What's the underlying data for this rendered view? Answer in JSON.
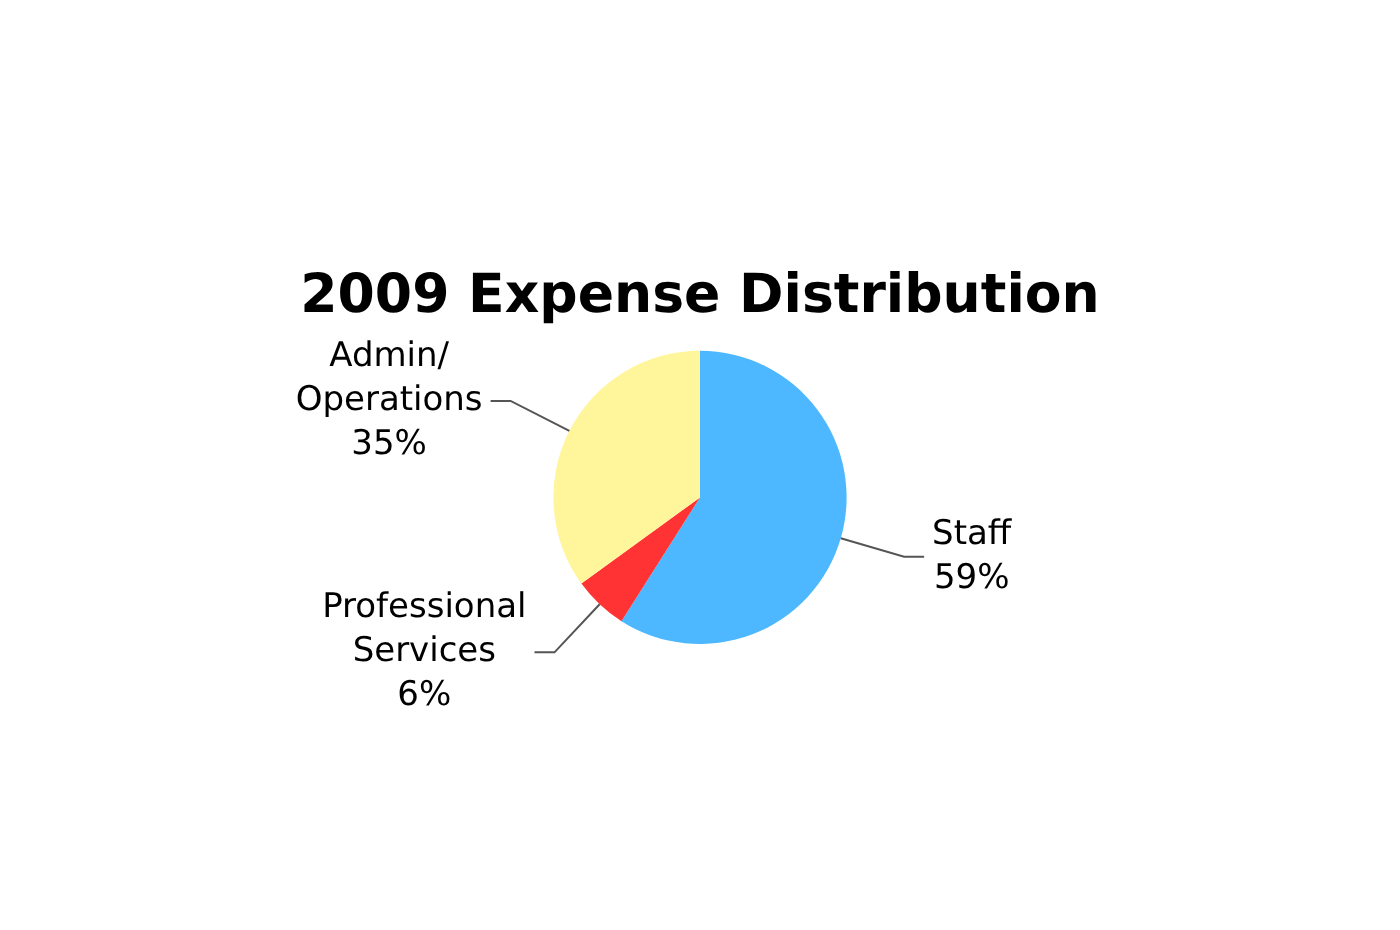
{
  "chart_data": {
    "type": "pie",
    "title": "2009 Expense Distribution",
    "categories": [
      "Staff",
      "Professional Services",
      "Admin/Operations"
    ],
    "values": [
      59,
      6,
      35
    ],
    "value_labels": [
      "59%",
      "6%",
      "35%"
    ],
    "colors": [
      "#4db8ff",
      "#ff3333",
      "#fff59a"
    ],
    "legend": false
  }
}
